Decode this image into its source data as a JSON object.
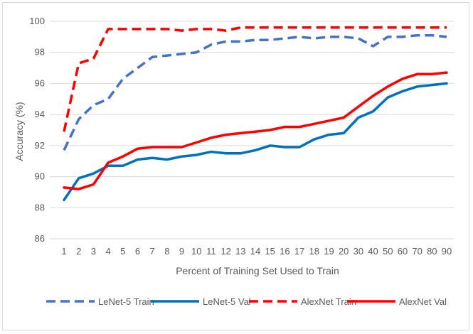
{
  "chart_data": {
    "type": "line",
    "title": "",
    "xlabel": "Percent of Training Set Used to Train",
    "ylabel": "Accuracy (%)",
    "categories": [
      "1",
      "2",
      "3",
      "4",
      "5",
      "6",
      "7",
      "8",
      "9",
      "10",
      "11",
      "12",
      "13",
      "14",
      "15",
      "16",
      "17",
      "18",
      "19",
      "20",
      "30",
      "40",
      "50",
      "60",
      "70",
      "80",
      "90"
    ],
    "ylim": [
      86,
      100
    ],
    "yticks": [
      86,
      88,
      90,
      92,
      94,
      96,
      98,
      100
    ],
    "grid": "horizontal",
    "legend_position": "bottom",
    "series": [
      {
        "name": "LeNet-5 Train",
        "color": "#4472c4",
        "dash": "dashed",
        "values": [
          91.7,
          93.7,
          94.6,
          95.0,
          96.3,
          97.0,
          97.7,
          97.8,
          97.9,
          98.0,
          98.5,
          98.7,
          98.7,
          98.8,
          98.8,
          98.9,
          99.0,
          98.9,
          99.0,
          99.0,
          98.9,
          98.4,
          99.0,
          99.0,
          99.1,
          99.1,
          99.0
        ]
      },
      {
        "name": "LeNet-5 Val",
        "color": "#0070c0",
        "dash": "solid",
        "values": [
          88.5,
          89.9,
          90.2,
          90.7,
          90.7,
          91.1,
          91.2,
          91.1,
          91.3,
          91.4,
          91.6,
          91.5,
          91.5,
          91.7,
          92.0,
          91.9,
          91.9,
          92.4,
          92.7,
          92.8,
          93.8,
          94.2,
          95.1,
          95.5,
          95.8,
          95.9,
          96.0
        ]
      },
      {
        "name": "AlexNet Train",
        "color": "#ff0000",
        "dash": "dashed",
        "values": [
          92.9,
          97.3,
          97.6,
          99.5,
          99.5,
          99.5,
          99.5,
          99.5,
          99.4,
          99.5,
          99.5,
          99.4,
          99.6,
          99.6,
          99.6,
          99.6,
          99.6,
          99.6,
          99.6,
          99.6,
          99.6,
          99.6,
          99.6,
          99.6,
          99.6,
          99.6,
          99.6
        ]
      },
      {
        "name": "AlexNet Val",
        "color": "#ff0000",
        "dash": "solid",
        "values": [
          89.3,
          89.2,
          89.5,
          90.9,
          91.3,
          91.8,
          91.9,
          91.9,
          91.9,
          92.2,
          92.5,
          92.7,
          92.8,
          92.9,
          93.0,
          93.2,
          93.2,
          93.4,
          93.6,
          93.8,
          94.5,
          95.2,
          95.8,
          96.3,
          96.6,
          96.6,
          96.7
        ]
      }
    ]
  }
}
